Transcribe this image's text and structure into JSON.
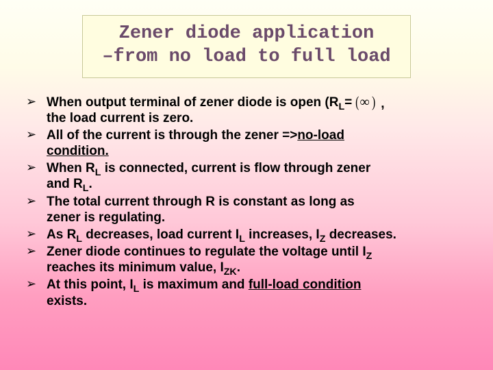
{
  "colors": {
    "title_bg": "#fffde0",
    "title_border": "#c8c898",
    "title_text": "#6a4a6a",
    "body_text": "#000000",
    "gradient_top": "#fffff5",
    "gradient_mid1": "#fffce8",
    "gradient_mid2": "#ffe8e8",
    "gradient_mid3": "#ffc8d8",
    "gradient_bot": "#ff88b8"
  },
  "typography": {
    "title_font": "Courier New",
    "title_fontsize_pt": 20,
    "body_font": "Verdana",
    "body_fontsize_pt": 14,
    "body_weight": "bold"
  },
  "title": {
    "line1": "Zener diode application",
    "line2": "–from no load to full load"
  },
  "bullets": [
    {
      "pre": "When output terminal of zener diode is open (R",
      "sub1": "L",
      "eq": "= ",
      "infinity": "∞",
      "post_inf": ",",
      "line2": "the load current is zero."
    },
    {
      "pre": "All of the current is through the zener =>",
      "u1": "no-load",
      "line2_u": "condition."
    },
    {
      "pre": "When R",
      "sub1": "L",
      "mid": " is connected, current is flow through zener",
      "line2_pre": "and R",
      "line2_sub": "L",
      "line2_post": "."
    },
    {
      "pre": "The total current through R is constant as long as",
      "line2": "zener is regulating."
    },
    {
      "pre": "As R",
      "sub1": "L",
      "mid": " decreases, load current I",
      "sub2": "L",
      "mid2": " increases, I",
      "sub3": "Z",
      "post": " decreases."
    },
    {
      "pre": "Zener diode continues to regulate the voltage until I",
      "sub1": "Z",
      "line2_pre": "reaches its minimum value, I",
      "line2_sub": "ZK",
      "line2_post": "."
    },
    {
      "pre": "At this point, I",
      "sub1": "L",
      "mid": " is maximum and ",
      "u1": "full-load condition",
      "line2": "exists."
    }
  ]
}
